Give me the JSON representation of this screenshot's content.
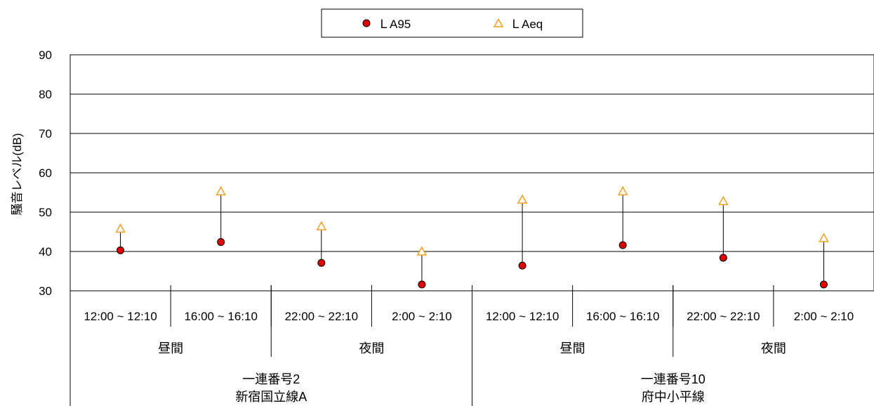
{
  "chart_data": {
    "type": "scatter",
    "title": "",
    "ylabel": "騒音レベル(dB)",
    "ylim": [
      30,
      90
    ],
    "yticks": [
      30,
      40,
      50,
      60,
      70,
      80,
      90
    ],
    "grid": true,
    "legend_position": "top-center",
    "categories": [
      "12:00 ~ 12:10",
      "16:00 ~ 16:10",
      "22:00 ~ 22:10",
      "2:00 ~ 2:10",
      "12:00 ~ 12:10",
      "16:00 ~ 16:10",
      "22:00 ~ 22:10",
      "2:00 ~ 2:10"
    ],
    "period_groups": [
      {
        "label": "昼間",
        "span": 2
      },
      {
        "label": "夜間",
        "span": 2
      },
      {
        "label": "昼間",
        "span": 2
      },
      {
        "label": "夜間",
        "span": 2
      }
    ],
    "site_groups": [
      {
        "line1": "一連番号2",
        "line2": "新宿国立線A",
        "span": 4
      },
      {
        "line1": "一連番号10",
        "line2": "府中小平線",
        "span": 4
      }
    ],
    "series": [
      {
        "name": "ＬA95",
        "marker": "circle",
        "color": "#e00000",
        "values": [
          40.3,
          42.4,
          37.1,
          31.6,
          36.4,
          41.6,
          38.4,
          31.6
        ]
      },
      {
        "name": "ＬAeq",
        "marker": "triangle",
        "color": "#f0a020",
        "values": [
          45.8,
          55.3,
          46.4,
          40.0,
          53.2,
          55.3,
          52.8,
          43.4
        ]
      }
    ]
  }
}
